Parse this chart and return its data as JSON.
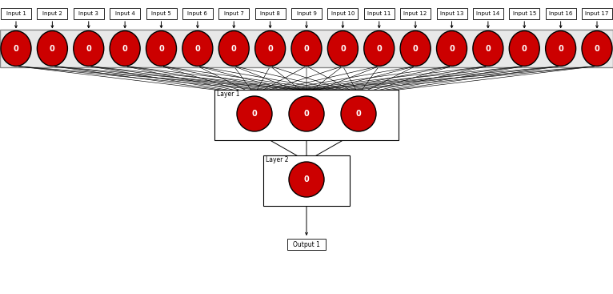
{
  "n_inputs": 17,
  "n_layer1_neurons": 17,
  "n_layer1b_neurons": 3,
  "neuron_color": "#CC0000",
  "neuron_edge_color": "#000000",
  "neuron_label": "0",
  "input_labels": [
    "Input 1",
    "Input 2",
    "Input 3",
    "Input 4",
    "Input 5",
    "Input 6",
    "Input 7",
    "Input 8",
    "Input 9",
    "Input 10",
    "Input 11",
    "Input 12",
    "Input 13",
    "Input 14",
    "Input 15",
    "Input 16",
    "Input 17"
  ],
  "layer1_label": "Layer 1",
  "layer2_label": "Layer 2",
  "output_label": "Output 1",
  "bg_color": "#FFFFFF",
  "box_color": "#FFFFFF",
  "box_edge_color": "#000000",
  "band_color": "#E8E8E8",
  "band_edge_color": "#888888",
  "figsize": [
    7.66,
    3.67
  ],
  "dpi": 100
}
